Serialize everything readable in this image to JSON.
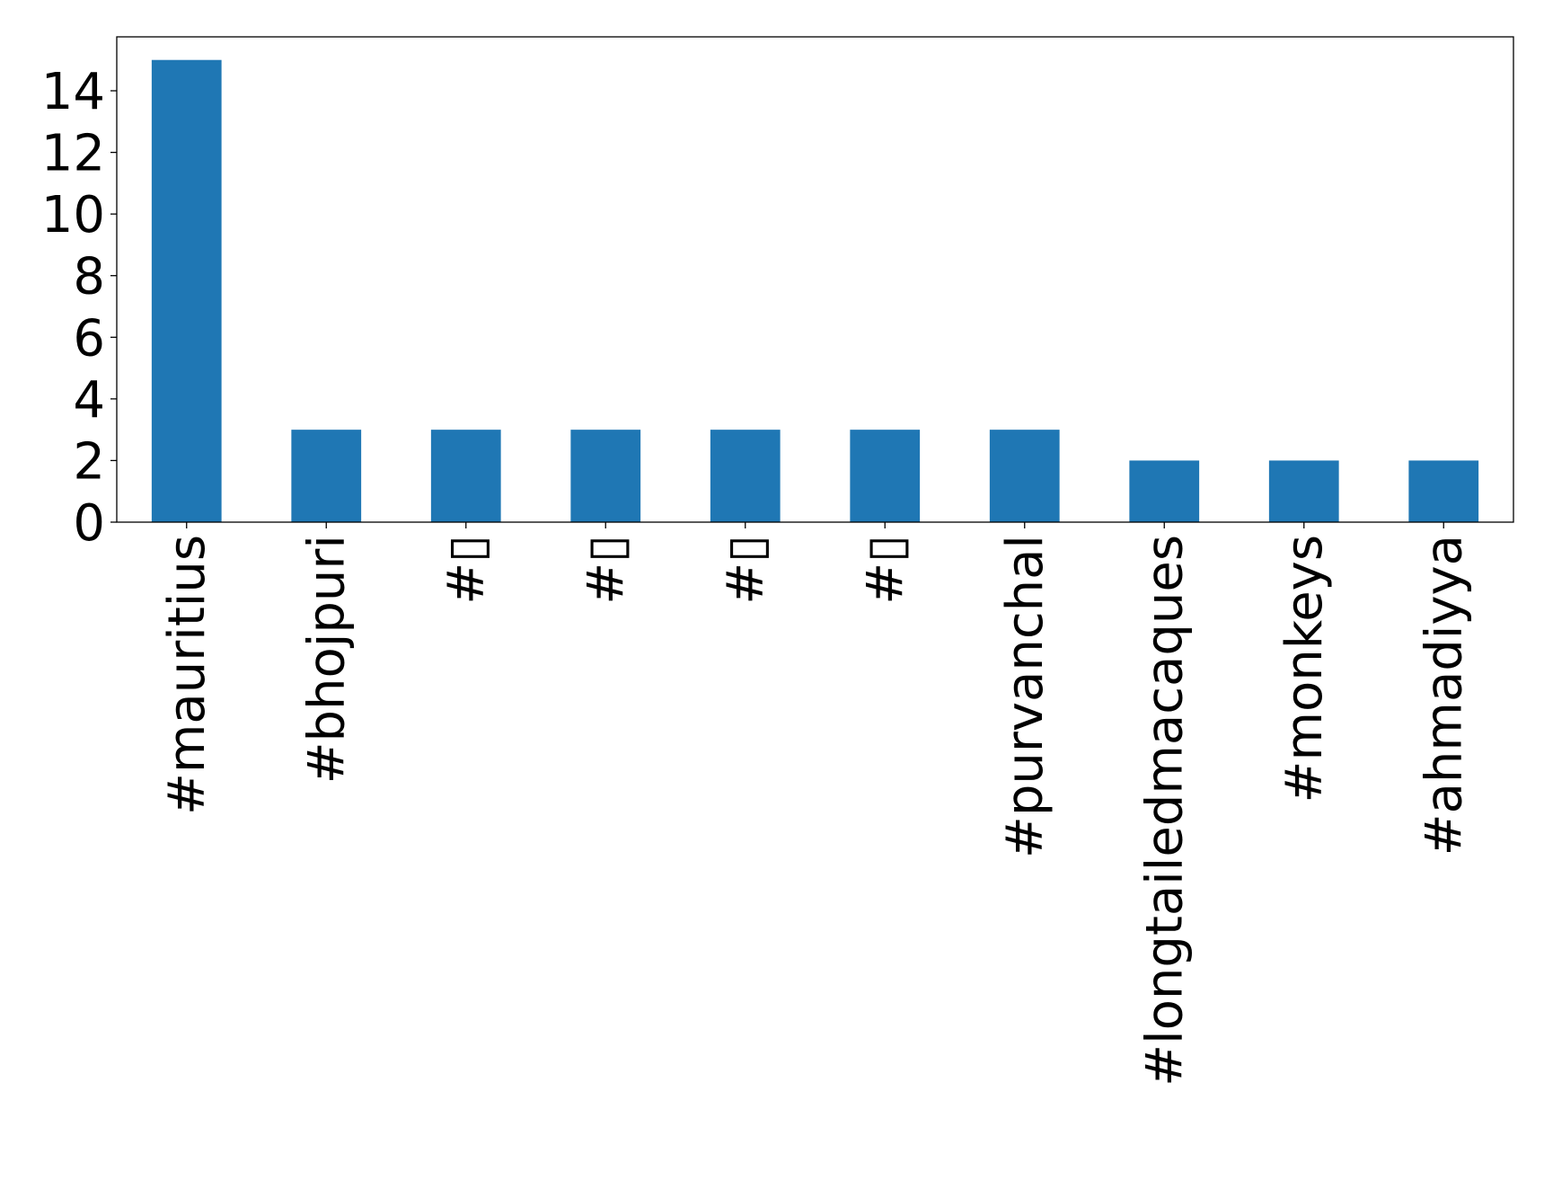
{
  "chart_data": {
    "type": "bar",
    "title": "",
    "xlabel": "",
    "ylabel": "",
    "categories": [
      "#mauritius",
      "#bhojpuri",
      "#▯",
      "#▯",
      "#▯",
      "#▯",
      "#purvanchal",
      "#longtailedmacaques",
      "#monkeys",
      "#ahmadiyya"
    ],
    "values": [
      15,
      3,
      3,
      3,
      3,
      3,
      3,
      2,
      2,
      2
    ],
    "ylim": [
      0,
      15.75
    ],
    "yticks": [
      0,
      2,
      4,
      6,
      8,
      10,
      12,
      14
    ],
    "grid": false,
    "legend": "none",
    "bar_color": "#1f77b4"
  }
}
